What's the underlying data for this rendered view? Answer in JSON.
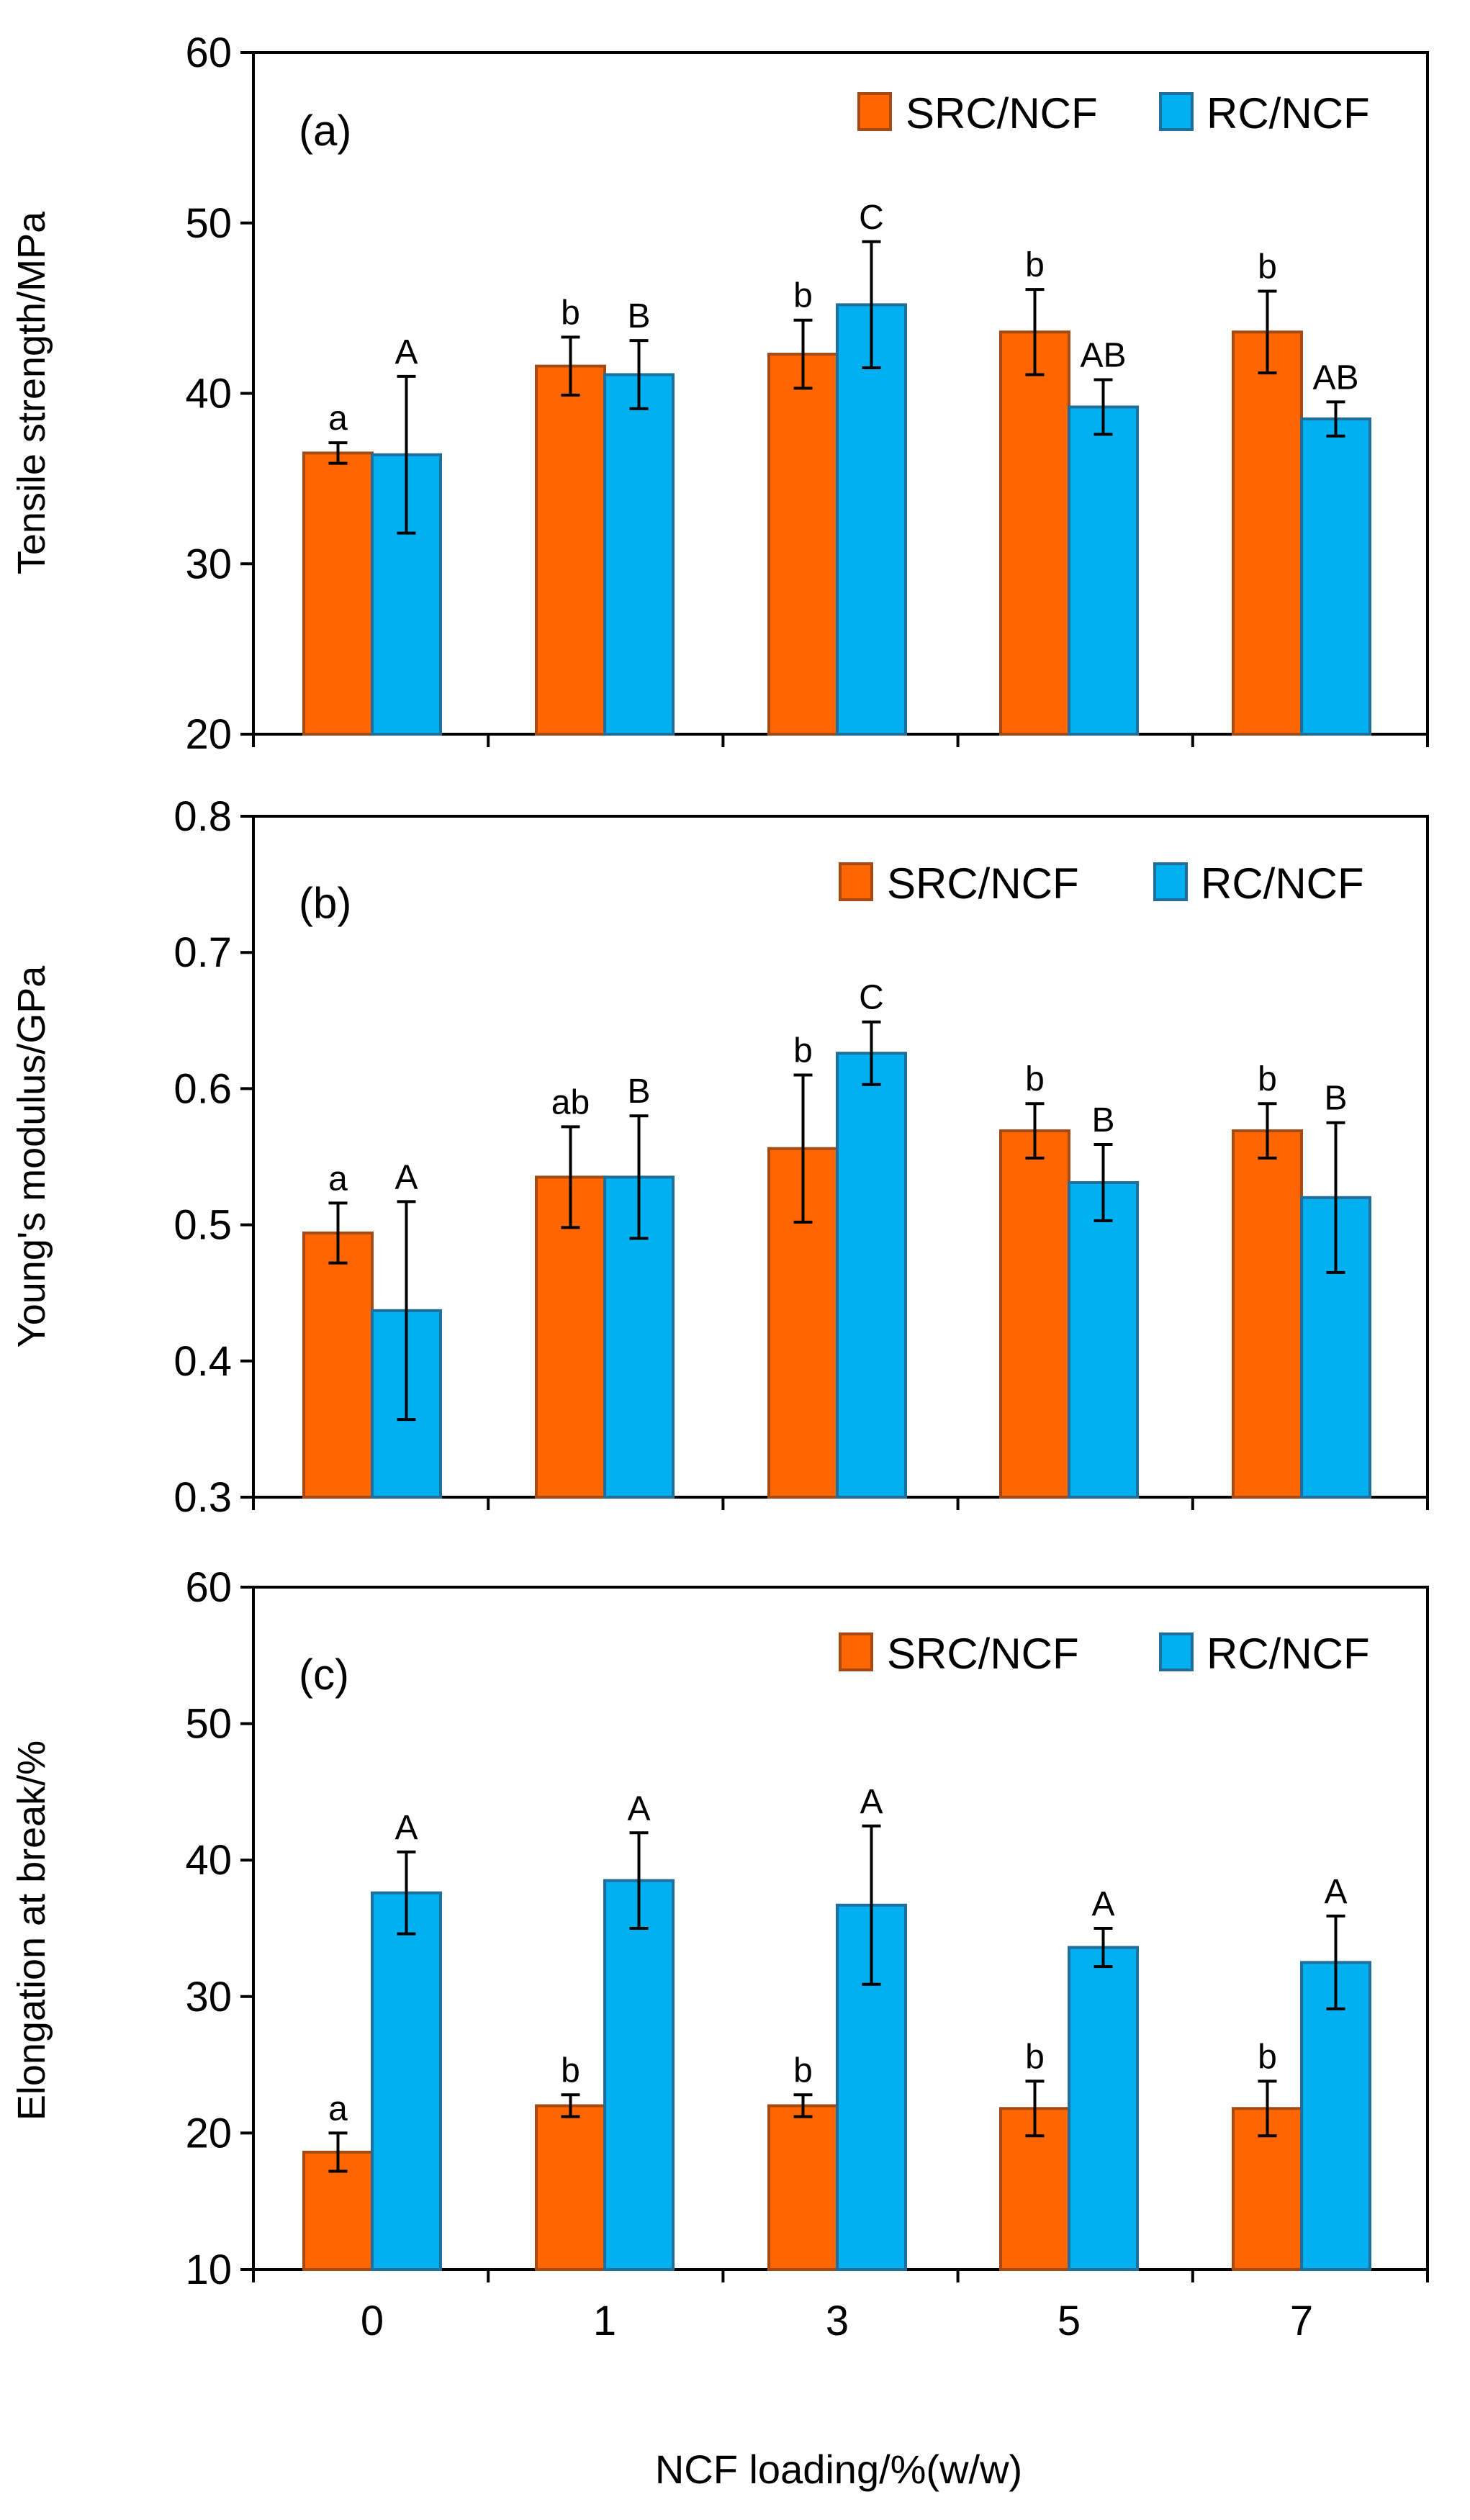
{
  "colors": {
    "src_fill": "#FF6600",
    "src_edge": "#A54A12",
    "rc_fill": "#00B0F0",
    "rc_edge": "#1F6E9C",
    "axis": "#000000"
  },
  "x_title": "NCF loading/%(w/w)",
  "chart_data": [
    {
      "type": "bar",
      "panel_label": "(a)",
      "ylabel": "Tensile strength/MPa",
      "ylim": [
        20,
        60
      ],
      "yticks": [
        20,
        30,
        40,
        50,
        60
      ],
      "categories": [
        "0",
        "1",
        "3",
        "5",
        "7"
      ],
      "series": [
        {
          "name": "SRC/NCF",
          "values": [
            36.5,
            41.6,
            42.3,
            43.6,
            43.6
          ],
          "errors": [
            0.6,
            1.7,
            2.0,
            2.5,
            2.4
          ],
          "letters": [
            "a",
            "b",
            "b",
            "b",
            "b"
          ]
        },
        {
          "name": "RC/NCF",
          "values": [
            36.4,
            41.1,
            45.2,
            39.2,
            38.5
          ],
          "errors": [
            4.6,
            2.0,
            3.7,
            1.6,
            1.0
          ],
          "letters": [
            "A",
            "B",
            "C",
            "AB",
            "AB"
          ]
        }
      ]
    },
    {
      "type": "bar",
      "panel_label": "(b)",
      "ylabel": "Young's modulus/GPa",
      "ylim": [
        0.3,
        0.8
      ],
      "yticks": [
        0.3,
        0.4,
        0.5,
        0.6,
        0.7,
        0.8
      ],
      "categories": [
        "0",
        "1",
        "3",
        "5",
        "7"
      ],
      "series": [
        {
          "name": "SRC/NCF",
          "values": [
            0.494,
            0.535,
            0.556,
            0.569,
            0.569
          ],
          "errors": [
            0.022,
            0.037,
            0.054,
            0.02,
            0.02
          ],
          "letters": [
            "a",
            "ab",
            "b",
            "b",
            "b"
          ]
        },
        {
          "name": "RC/NCF",
          "values": [
            0.437,
            0.535,
            0.626,
            0.531,
            0.52
          ],
          "errors": [
            0.08,
            0.045,
            0.023,
            0.028,
            0.055
          ],
          "letters": [
            "A",
            "B",
            "C",
            "B",
            "B"
          ]
        }
      ]
    },
    {
      "type": "bar",
      "panel_label": "(c)",
      "ylabel": "Elongation at break/%",
      "ylim": [
        10,
        60
      ],
      "yticks": [
        10,
        20,
        30,
        40,
        50,
        60
      ],
      "categories": [
        "0",
        "1",
        "3",
        "5",
        "7"
      ],
      "series": [
        {
          "name": "SRC/NCF",
          "values": [
            18.6,
            22.0,
            22.0,
            21.8,
            21.8
          ],
          "errors": [
            1.4,
            0.8,
            0.8,
            2.0,
            2.0
          ],
          "letters": [
            "a",
            "b",
            "b",
            "b",
            "b"
          ]
        },
        {
          "name": "RC/NCF",
          "values": [
            37.6,
            38.5,
            36.7,
            33.6,
            32.5
          ],
          "errors": [
            3.0,
            3.5,
            5.8,
            1.4,
            3.4
          ],
          "letters": [
            "A",
            "A",
            "A",
            "A",
            "A"
          ]
        }
      ]
    }
  ]
}
